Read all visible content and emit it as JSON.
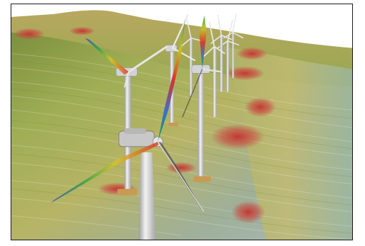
{
  "scene": {
    "subject": "wind-farm-simulation",
    "turbine_count": 8,
    "colors": {
      "sky": "#ffffff",
      "terrain_green": "#8fae5a",
      "terrain_yellow": "#c9b860",
      "terrain_blue_grey": "#a9b7b8",
      "hot_spot_red": "#c9473f",
      "tower": "#e6e6e6",
      "nacelle": "#d8d8d8",
      "foundation": "#c89a52",
      "border": "#1a1a1a"
    }
  }
}
